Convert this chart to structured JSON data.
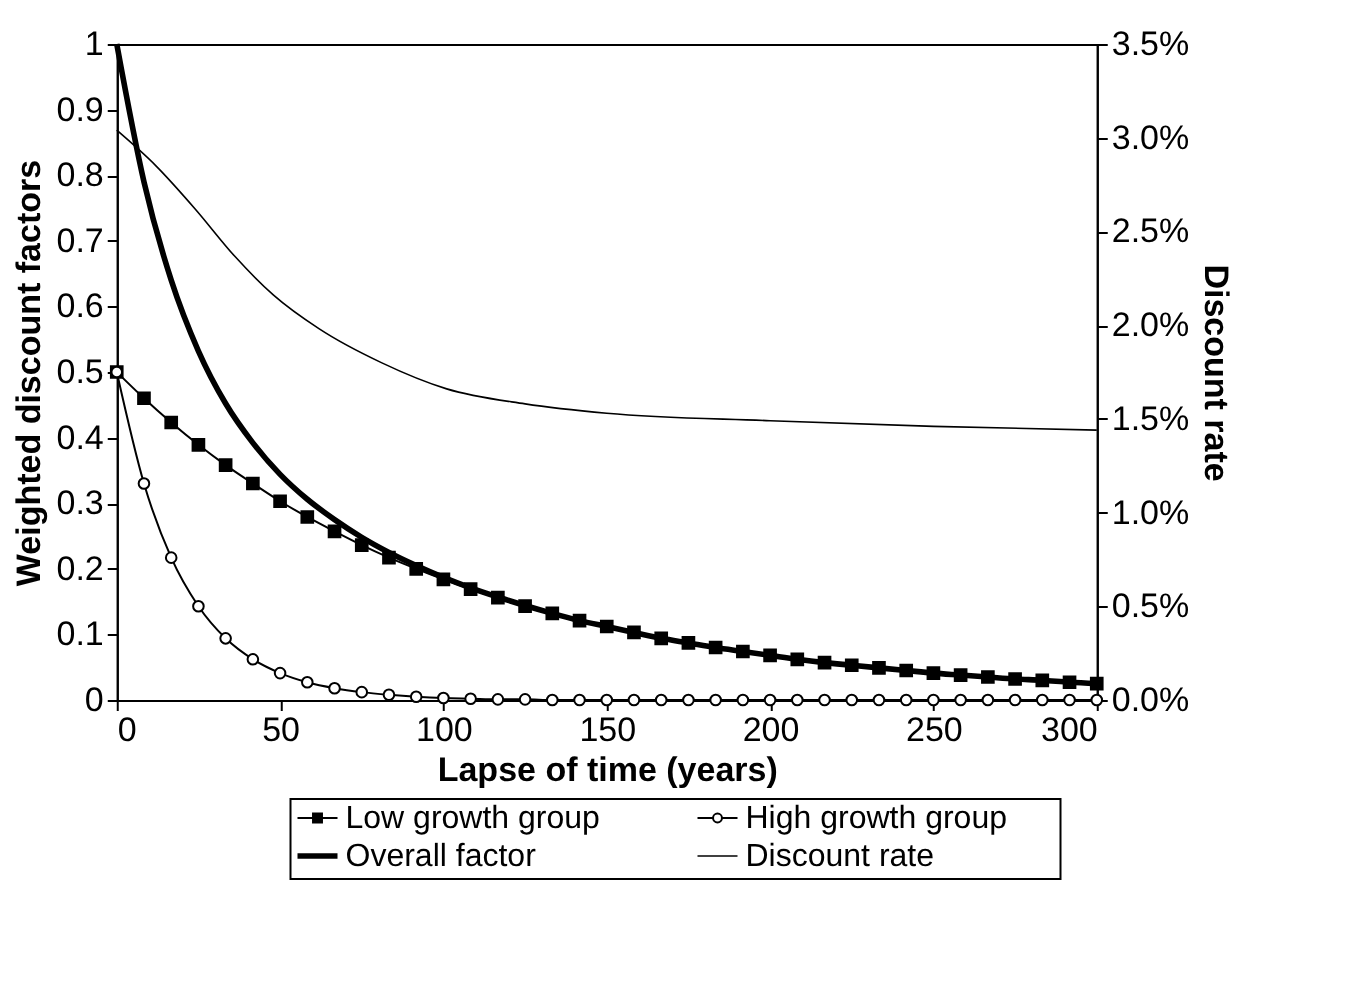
{
  "chart_data": {
    "type": "line",
    "xlabel": "Lapse of time (years)",
    "ylabel": "Weighted discount factors",
    "y2label": "Discount rate",
    "x": [
      0,
      8.33,
      16.67,
      25,
      33.33,
      41.67,
      50,
      58.33,
      66.67,
      75,
      83.33,
      91.67,
      100,
      108.33,
      116.67,
      125,
      133.33,
      141.67,
      150,
      158.33,
      166.67,
      175,
      183.33,
      191.67,
      200,
      208.33,
      216.67,
      225,
      233.33,
      241.67,
      250,
      258.33,
      266.67,
      275,
      283.33,
      291.67,
      300
    ],
    "series": [
      {
        "name": "Low growth group",
        "color": "#000000",
        "marker": "square",
        "values": [
          0.5,
          0.46,
          0.423,
          0.389,
          0.358,
          0.33,
          0.303,
          0.279,
          0.257,
          0.236,
          0.217,
          0.2,
          0.184,
          0.169,
          0.156,
          0.143,
          0.132,
          0.121,
          0.112,
          0.103,
          0.094,
          0.087,
          0.08,
          0.074,
          0.068,
          0.062,
          0.057,
          0.053,
          0.049,
          0.045,
          0.041,
          0.038,
          0.035,
          0.032,
          0.03,
          0.027,
          0.025
        ]
      },
      {
        "name": "High growth group",
        "color": "#000000",
        "marker": "circle",
        "values": [
          0.5,
          0.33,
          0.217,
          0.143,
          0.094,
          0.062,
          0.041,
          0.027,
          0.018,
          0.012,
          0.008,
          0.005,
          0.003,
          0.002,
          0.001,
          0.001,
          0,
          0,
          0,
          0,
          0,
          0,
          0,
          0,
          0,
          0,
          0,
          0,
          0,
          0,
          0,
          0,
          0,
          0,
          0,
          0,
          0
        ]
      },
      {
        "name": "Overall factor",
        "color": "#000000",
        "marker": "none",
        "values": [
          1.0,
          0.79,
          0.64,
          0.532,
          0.452,
          0.392,
          0.344,
          0.306,
          0.275,
          0.248,
          0.225,
          0.205,
          0.187,
          0.171,
          0.157,
          0.144,
          0.132,
          0.121,
          0.112,
          0.103,
          0.094,
          0.087,
          0.08,
          0.074,
          0.068,
          0.062,
          0.057,
          0.053,
          0.049,
          0.045,
          0.041,
          0.038,
          0.035,
          0.032,
          0.03,
          0.027,
          0.025
        ]
      },
      {
        "name": "Discount rate",
        "color": "#000000",
        "marker": "none",
        "axis": "y2",
        "x": [
          0,
          12,
          24,
          36,
          48,
          62,
          81,
          101,
          125,
          150,
          200,
          250,
          300
        ],
        "values": [
          3.04,
          2.85,
          2.62,
          2.37,
          2.16,
          1.98,
          1.8,
          1.66,
          1.58,
          1.53,
          1.49,
          1.46,
          1.44
        ]
      }
    ],
    "xlim": [
      0,
      300
    ],
    "xticks": [
      0,
      50,
      100,
      150,
      200,
      250,
      300
    ],
    "ylim": [
      0,
      1
    ],
    "yticks": [
      0,
      0.1,
      0.2,
      0.3,
      0.4,
      0.5,
      0.6,
      0.7,
      0.8,
      0.9,
      1
    ],
    "y2lim": [
      0,
      3.5
    ],
    "y2ticks": [
      {
        "value": 0,
        "label": "0.0%"
      },
      {
        "value": 0.5,
        "label": "0.5%"
      },
      {
        "value": 1,
        "label": "1.0%"
      },
      {
        "value": 1.5,
        "label": "1.5%"
      },
      {
        "value": 2,
        "label": "2.0%"
      },
      {
        "value": 2.5,
        "label": "2.5%"
      },
      {
        "value": 3,
        "label": "3.0%"
      },
      {
        "value": 3.5,
        "label": "3.5%"
      }
    ],
    "grid": false,
    "legend": "bottom",
    "line_style": "solid"
  }
}
